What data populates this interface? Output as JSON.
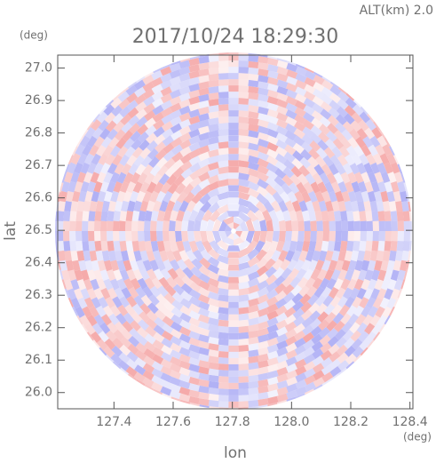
{
  "chart_data": {
    "type": "radar-image",
    "title": "2017/10/24 18:29:30",
    "subtitle": "ALT(km) 2.0",
    "x_label": "lon",
    "y_label": "lat",
    "x_unit": "(deg)",
    "y_unit": "(deg)",
    "xlim": [
      127.21,
      128.41
    ],
    "ylim": [
      25.95,
      27.04
    ],
    "xticks": [
      127.4,
      127.6,
      127.8,
      {
        "value": 128.0,
        "label": "128.0"
      },
      128.2,
      128.4
    ],
    "yticks": [
      {
        "value": 26.0,
        "label": "26.0"
      },
      26.1,
      26.2,
      26.3,
      26.4,
      26.5,
      26.6,
      26.7,
      26.8,
      26.9,
      {
        "value": 27.0,
        "label": "27.0"
      }
    ],
    "colors": [
      "#f4a0a0",
      "#a8a8f4"
    ]
  }
}
